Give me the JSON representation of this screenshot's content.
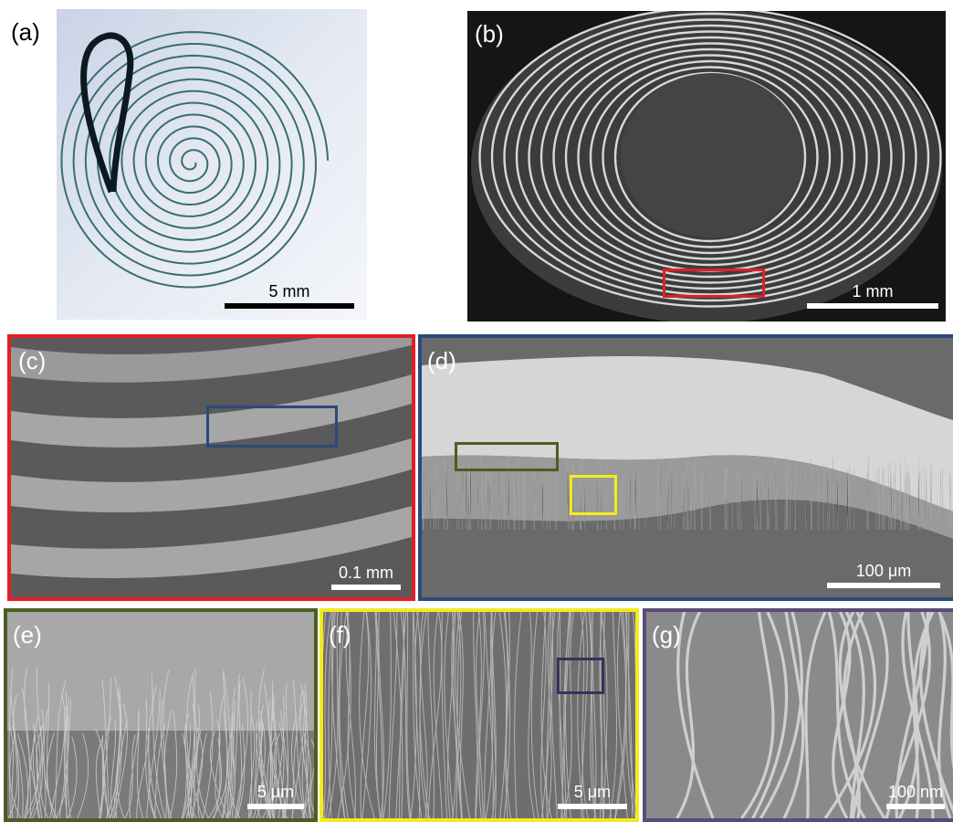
{
  "panels": {
    "a": {
      "label": "(a)",
      "scale_bar": "5 mm"
    },
    "b": {
      "label": "(b)",
      "scale_bar": "1 mm"
    },
    "c": {
      "label": "(c)",
      "scale_bar": "0.1 mm"
    },
    "d": {
      "label": "(d)",
      "scale_bar": "100 μm"
    },
    "e": {
      "label": "(e)",
      "scale_bar": "5 μm"
    },
    "f": {
      "label": "(f)",
      "scale_bar": "5 μm"
    },
    "g": {
      "label": "(g)",
      "scale_bar": "100 nm"
    }
  },
  "colors": {
    "frame_c": "#e31e24",
    "frame_d": "#2b4a7c",
    "frame_e": "#4a5e22",
    "frame_f": "#f2ec1c",
    "frame_g": "#5c4a78",
    "roi_b": "#e31e24",
    "roi_c": "#2b4a7c",
    "roi_d_green": "#4a5e22",
    "roi_d_yellow": "#f2ec1c",
    "roi_f": "#3c2f5a"
  }
}
